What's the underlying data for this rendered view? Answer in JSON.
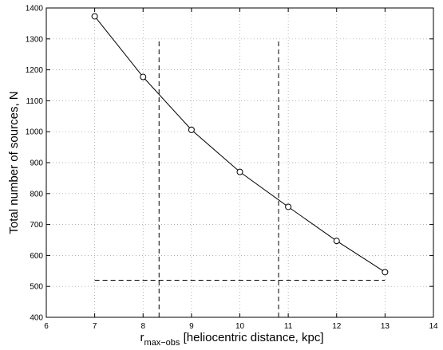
{
  "chart_data": {
    "type": "line",
    "xlabel": {
      "main": "r",
      "subscript": "max−obs",
      "rest": " [heliocentric distance, kpc]"
    },
    "ylabel": "Total number of sources, N",
    "xlim": [
      6,
      14
    ],
    "ylim": [
      400,
      1400
    ],
    "xticks": [
      "6",
      "7",
      "8",
      "9",
      "10",
      "11",
      "12",
      "13",
      "14"
    ],
    "yticks": [
      "400",
      "500",
      "600",
      "700",
      "800",
      "900",
      "1000",
      "1100",
      "1200",
      "1300",
      "1400"
    ],
    "grid": true,
    "series": [
      {
        "x": [
          7,
          8,
          9,
          10,
          11,
          12,
          13
        ],
        "y": [
          1373,
          1177,
          1006,
          870,
          757,
          647,
          546
        ],
        "marker": "circle",
        "color": "#000000"
      }
    ],
    "reference_lines": [
      {
        "style": "dashed",
        "x": [
          8.33,
          8.33
        ],
        "y": [
          400,
          1300
        ]
      },
      {
        "style": "dashed",
        "x": [
          10.8,
          10.8
        ],
        "y": [
          400,
          1300
        ]
      },
      {
        "style": "dashed",
        "x": [
          7,
          13
        ],
        "y": [
          520,
          520
        ]
      }
    ]
  }
}
